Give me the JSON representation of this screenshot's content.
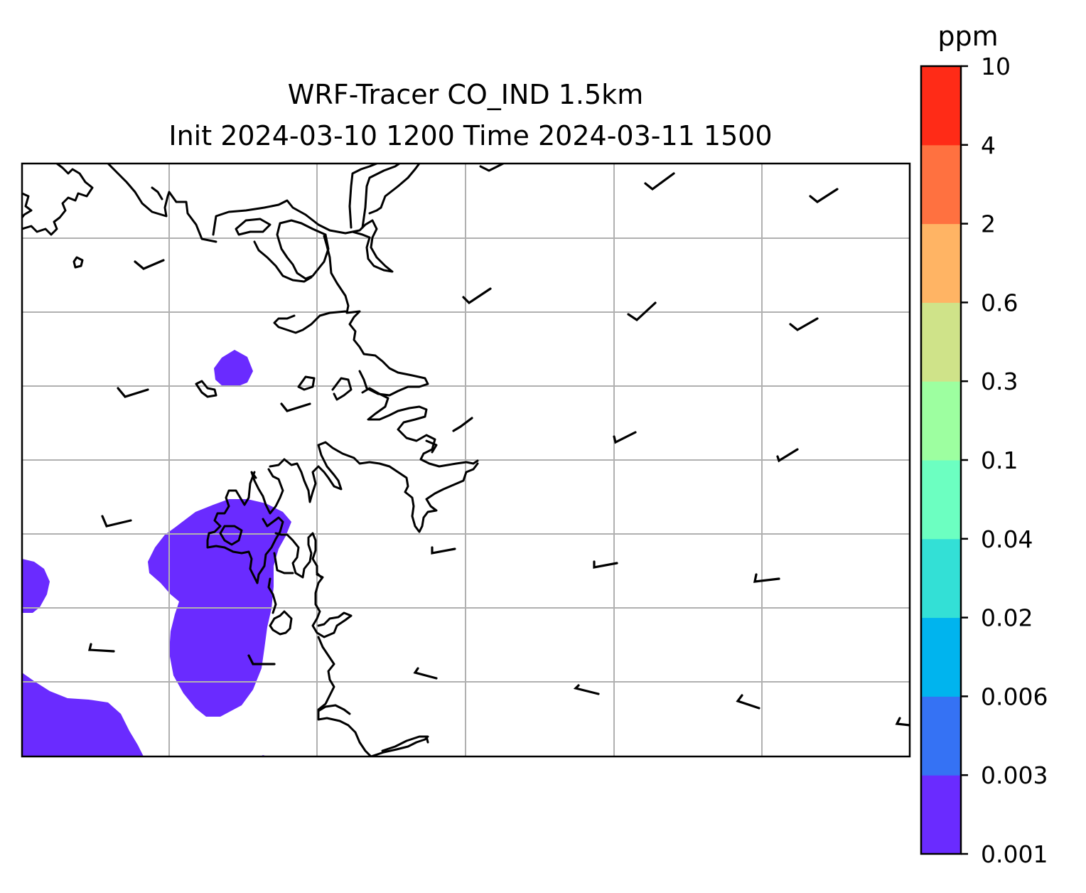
{
  "title": {
    "line1": "WRF-Tracer CO_IND 1.5km",
    "line2": "Init 2024-03-10 1200 Time 2024-03-11 1500"
  },
  "colorbar": {
    "unit": "ppm",
    "levels": [
      "0.001",
      "0.003",
      "0.006",
      "0.02",
      "0.04",
      "0.1",
      "0.3",
      "0.6",
      "2",
      "4",
      "10"
    ],
    "colors": [
      "#6a2bff",
      "#3572f4",
      "#00b4ee",
      "#33e0d6",
      "#6cffc1",
      "#9dffa0",
      "#cfe389",
      "#ffb464",
      "#ff7140",
      "#ff2b17"
    ]
  },
  "map": {
    "gridlines": true,
    "coastline_color": "#000000",
    "plume_color": "#6a2bff",
    "features": [
      "coastline",
      "gridlines",
      "wind-barbs",
      "CO tracer plume"
    ]
  }
}
